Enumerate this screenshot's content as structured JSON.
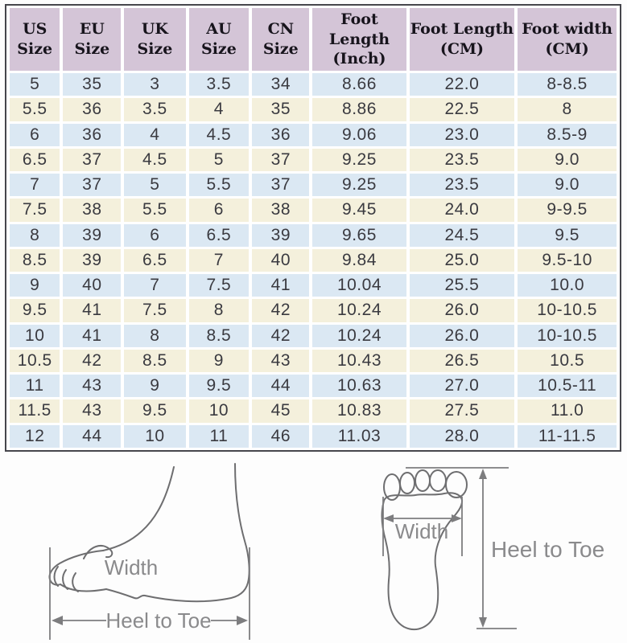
{
  "chart_data": {
    "type": "table",
    "columns": [
      {
        "line1": "US",
        "line2": "Size"
      },
      {
        "line1": "EU",
        "line2": "Size"
      },
      {
        "line1": "UK",
        "line2": "Size"
      },
      {
        "line1": "AU",
        "line2": "Size"
      },
      {
        "line1": "CN",
        "line2": "Size"
      },
      {
        "line1": "Foot Length",
        "line2": "(Inch)"
      },
      {
        "line1": "Foot Length",
        "line2": "(CM)"
      },
      {
        "line1": "Foot width",
        "line2": "(CM)"
      }
    ],
    "rows": [
      [
        "5",
        "35",
        "3",
        "3.5",
        "34",
        "8.66",
        "22.0",
        "8-8.5"
      ],
      [
        "5.5",
        "36",
        "3.5",
        "4",
        "35",
        "8.86",
        "22.5",
        "8"
      ],
      [
        "6",
        "36",
        "4",
        "4.5",
        "36",
        "9.06",
        "23.0",
        "8.5-9"
      ],
      [
        "6.5",
        "37",
        "4.5",
        "5",
        "37",
        "9.25",
        "23.5",
        "9.0"
      ],
      [
        "7",
        "37",
        "5",
        "5.5",
        "37",
        "9.25",
        "23.5",
        "9.0"
      ],
      [
        "7.5",
        "38",
        "5.5",
        "6",
        "38",
        "9.45",
        "24.0",
        "9-9.5"
      ],
      [
        "8",
        "39",
        "6",
        "6.5",
        "39",
        "9.65",
        "24.5",
        "9.5"
      ],
      [
        "8.5",
        "39",
        "6.5",
        "7",
        "40",
        "9.84",
        "25.0",
        "9.5-10"
      ],
      [
        "9",
        "40",
        "7",
        "7.5",
        "41",
        "10.04",
        "25.5",
        "10.0"
      ],
      [
        "9.5",
        "41",
        "7.5",
        "8",
        "42",
        "10.24",
        "26.0",
        "10-10.5"
      ],
      [
        "10",
        "41",
        "8",
        "8.5",
        "42",
        "10.24",
        "26.0",
        "10-10.5"
      ],
      [
        "10.5",
        "42",
        "8.5",
        "9",
        "43",
        "10.43",
        "26.5",
        "10.5"
      ],
      [
        "11",
        "43",
        "9",
        "9.5",
        "44",
        "10.63",
        "27.0",
        "10.5-11"
      ],
      [
        "11.5",
        "43",
        "9.5",
        "10",
        "45",
        "10.83",
        "27.5",
        "11.0"
      ],
      [
        "12",
        "44",
        "10",
        "11",
        "46",
        "11.03",
        "28.0",
        "11-11.5"
      ]
    ]
  },
  "diagrams": {
    "side_view": {
      "width_label": "Width",
      "heel_to_toe_label": "Heel to Toe"
    },
    "footprint": {
      "width_label": "Width",
      "heel_to_toe_label": "Heel to Toe"
    }
  },
  "colors": {
    "header_bg": "#d4c5d7",
    "row_blue": "#dbe8f3",
    "row_cream": "#f4f0dc",
    "table_border": "#46464c",
    "cell_text": "#3a3a40",
    "diagram_stroke": "#6e6e70",
    "diagram_text": "#8a8a8c"
  }
}
